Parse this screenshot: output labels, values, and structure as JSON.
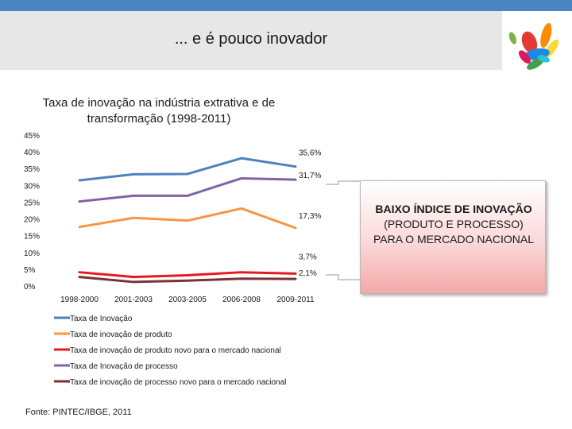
{
  "header": {
    "title": "... e é pouco inovador"
  },
  "callout": {
    "line1": "BAIXO ÍNDICE DE INOVAÇÃO",
    "line2": "(PRODUTO E PROCESSO)",
    "line3": "PARA O MERCADO NACIONAL",
    "background": "#f4a8a8"
  },
  "source": "Fonte: PINTEC/IBGE, 2011",
  "logo": {
    "icon": "colorful-hands-logo-icon"
  },
  "chart_data": {
    "type": "line",
    "title_line1": "Taxa de inovação na indústria extrativa e de",
    "title_line2": "transformação (1998-2011)",
    "categories": [
      "1998-2000",
      "2001-2003",
      "2003-2005",
      "2006-2008",
      "2009-2011"
    ],
    "ylim": [
      0,
      45
    ],
    "yticks": [
      0,
      5,
      10,
      15,
      20,
      25,
      30,
      35,
      40,
      45
    ],
    "ytick_labels": [
      "0%",
      "5%",
      "10%",
      "15%",
      "20%",
      "25%",
      "30%",
      "35%",
      "40%",
      "45%"
    ],
    "grid": false,
    "legend_position": "bottom",
    "series": [
      {
        "name": "Taxa de Inovação",
        "color": "#4f81bd",
        "values": [
          31.5,
          33.3,
          33.4,
          38.1,
          35.6
        ],
        "end_label": "35,6%"
      },
      {
        "name": "Taxa de inovação de produto",
        "color": "#f79646",
        "values": [
          17.6,
          20.3,
          19.5,
          23.1,
          17.3
        ],
        "end_label": "17,3%"
      },
      {
        "name": "Taxa de inovação de produto novo para o mercado nacional",
        "color": "#e8191e",
        "values": [
          4.1,
          2.7,
          3.2,
          4.1,
          3.7
        ],
        "end_label": "3,7%"
      },
      {
        "name": "Taxa de Inovação de processo",
        "color": "#8064a2",
        "values": [
          25.2,
          26.9,
          26.9,
          32.1,
          31.7
        ],
        "end_label": "31,7%"
      },
      {
        "name": "Taxa de inovação de processo novo para o mercado nacional",
        "color": "#7b3232",
        "values": [
          2.7,
          1.2,
          1.6,
          2.2,
          2.1
        ],
        "end_label": "2,1%"
      }
    ]
  }
}
